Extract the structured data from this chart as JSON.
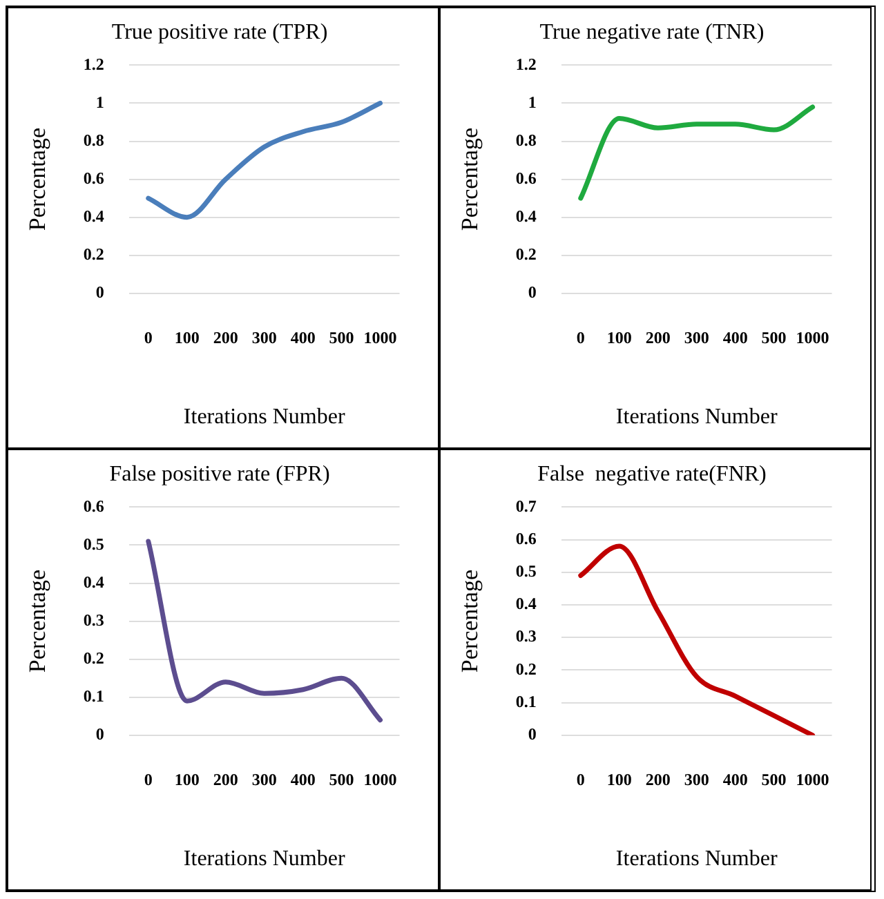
{
  "chart_data": [
    {
      "type": "line",
      "title": "True positive rate (TPR)",
      "xlabel": "Iterations Number",
      "ylabel": "Percentage",
      "categories": [
        "0",
        "100",
        "200",
        "300",
        "400",
        "500",
        "1000"
      ],
      "series": [
        {
          "color": "#4a7ebb",
          "values": [
            0.5,
            0.4,
            0.6,
            0.77,
            0.85,
            0.9,
            1.0
          ]
        }
      ],
      "ylim": [
        0,
        1.2
      ],
      "yticks": [
        0,
        0.2,
        0.4,
        0.6,
        0.8,
        1,
        1.2
      ],
      "grid": "y",
      "legend": false
    },
    {
      "type": "line",
      "title": "True negative rate (TNR)",
      "xlabel": "Iterations Number",
      "ylabel": "Percentage",
      "categories": [
        "0",
        "100",
        "200",
        "300",
        "400",
        "500",
        "1000"
      ],
      "series": [
        {
          "color": "#1faa3f",
          "values": [
            0.5,
            0.92,
            0.87,
            0.89,
            0.89,
            0.86,
            0.98
          ]
        }
      ],
      "ylim": [
        0,
        1.2
      ],
      "yticks": [
        0,
        0.2,
        0.4,
        0.6,
        0.8,
        1,
        1.2
      ],
      "grid": "y",
      "legend": false
    },
    {
      "type": "line",
      "title": "False positive rate (FPR)",
      "xlabel": "Iterations Number",
      "ylabel": "Percentage",
      "categories": [
        "0",
        "100",
        "200",
        "300",
        "400",
        "500",
        "1000"
      ],
      "series": [
        {
          "color": "#5c4d8f",
          "values": [
            0.51,
            0.09,
            0.14,
            0.11,
            0.12,
            0.15,
            0.04
          ]
        }
      ],
      "ylim": [
        0,
        0.6
      ],
      "yticks": [
        0,
        0.1,
        0.2,
        0.3,
        0.4,
        0.5,
        0.6
      ],
      "grid": "y",
      "legend": false
    },
    {
      "type": "line",
      "title": "False  negative rate(FNR)",
      "xlabel": "Iterations Number",
      "ylabel": "Percentage",
      "categories": [
        "0",
        "100",
        "200",
        "300",
        "400",
        "500",
        "1000"
      ],
      "series": [
        {
          "color": "#c00000",
          "values": [
            0.49,
            0.58,
            0.38,
            0.18,
            0.12,
            0.06,
            0.0
          ]
        }
      ],
      "ylim": [
        0,
        0.7
      ],
      "yticks": [
        0,
        0.1,
        0.2,
        0.3,
        0.4,
        0.5,
        0.6,
        0.7
      ],
      "grid": "y",
      "legend": false
    }
  ]
}
